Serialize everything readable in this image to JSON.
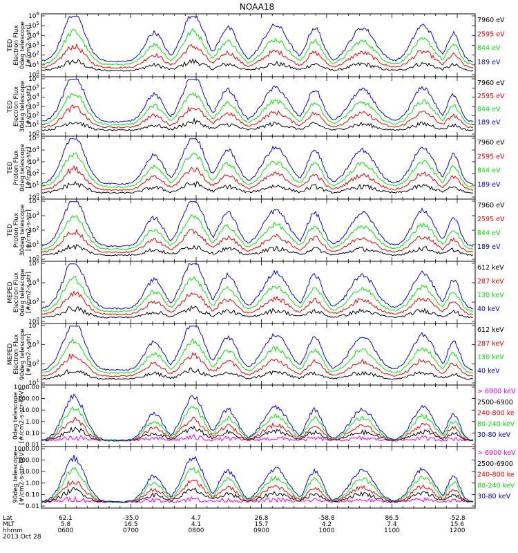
{
  "title": "NOAA18",
  "colors": {
    "blue": "#0000ff",
    "red": "#ff0000",
    "green": "#00ee00",
    "black": "#000000",
    "magenta": "#ff00ff"
  },
  "chart_data": [
    {
      "type": "line",
      "ylabel": [
        "TED",
        "Electron Flux",
        "0deg telescope",
        "[#/cm2-s-str]"
      ],
      "log_scale": true,
      "yticks": [
        "10^0",
        "10^1",
        "10^2",
        "10^3",
        "10^4",
        "10^5",
        "10^6"
      ],
      "series": [
        {
          "name": "7960 eV",
          "color": "black"
        },
        {
          "name": "2595 eV",
          "color": "red"
        },
        {
          "name": "844 eV",
          "color": "green"
        },
        {
          "name": "189 eV",
          "color": "blue"
        }
      ]
    },
    {
      "type": "line",
      "ylabel": [
        "TED",
        "Electron Flux",
        "30deg telescope",
        "[#/cm2-s-str]"
      ],
      "log_scale": true,
      "yticks": [
        "10^0",
        "10^1",
        "10^2",
        "10^3",
        "10^4",
        "10^5",
        "10^6"
      ],
      "series": [
        {
          "name": "7960 eV",
          "color": "black"
        },
        {
          "name": "2595 eV",
          "color": "red"
        },
        {
          "name": "844 eV",
          "color": "green"
        },
        {
          "name": "189 eV",
          "color": "blue"
        }
      ]
    },
    {
      "type": "line",
      "ylabel": [
        "TED",
        "Proton Flux",
        "0deg telescope",
        "[#/cm2-s-str]"
      ],
      "log_scale": true,
      "yticks": [
        "10^0",
        "10^1",
        "10^2",
        "10^3",
        "10^4",
        "10^5"
      ],
      "series": [
        {
          "name": "7960 eV",
          "color": "black"
        },
        {
          "name": "2595 eV",
          "color": "red"
        },
        {
          "name": "844 eV",
          "color": "green"
        },
        {
          "name": "189 eV",
          "color": "blue"
        }
      ]
    },
    {
      "type": "line",
      "ylabel": [
        "TED",
        "Proton Flux",
        "30deg telescope",
        "[#/cm2-s-str]"
      ],
      "log_scale": true,
      "yticks": [
        "10^0",
        "10^1",
        "10^2",
        "10^3",
        "10^4"
      ],
      "series": [
        {
          "name": "7960 eV",
          "color": "black"
        },
        {
          "name": "2595 eV",
          "color": "red"
        },
        {
          "name": "844 eV",
          "color": "green"
        },
        {
          "name": "189 eV",
          "color": "blue"
        }
      ]
    },
    {
      "type": "line",
      "ylabel": [
        "MEPED",
        "Electron Flux",
        "0deg telescope",
        "[#/cm2-s-str]"
      ],
      "log_scale": true,
      "yticks": [
        "10^0",
        "10^2",
        "10^4",
        "10^6"
      ],
      "series": [
        {
          "name": "612 keV",
          "color": "black"
        },
        {
          "name": "287 keV",
          "color": "red"
        },
        {
          "name": "130 keV",
          "color": "green"
        },
        {
          "name": "40 keV",
          "color": "blue"
        }
      ]
    },
    {
      "type": "line",
      "ylabel": [
        "MEPED",
        "Electron Flux",
        "90deg telescope",
        "[#/cm2-s-str]"
      ],
      "log_scale": true,
      "yticks": [
        "10^1",
        "10^2",
        "10^3",
        "10^4"
      ],
      "series": [
        {
          "name": "612 keV",
          "color": "black"
        },
        {
          "name": "287 keV",
          "color": "red"
        },
        {
          "name": "130 keV",
          "color": "green"
        },
        {
          "name": "40 keV",
          "color": "blue"
        }
      ]
    },
    {
      "type": "line",
      "ylabel": [
        "0deg telescope",
        "[#/cm2-s-str-keV]"
      ],
      "log_scale": true,
      "yticks": [
        "0.01",
        "0.10",
        "1.00",
        "10.00",
        "100.00",
        "1000.00"
      ],
      "series": [
        {
          "name": "> 6900 keV",
          "color": "magenta"
        },
        {
          "name": "2500-6900",
          "color": "black"
        },
        {
          "name": "240-800 ke",
          "color": "red"
        },
        {
          "name": "80-240 keV",
          "color": "green"
        },
        {
          "name": "30-80 keV",
          "color": "blue"
        }
      ]
    },
    {
      "type": "line",
      "ylabel": [
        "90deg telescope",
        "[#/cm2-s-str-keV]"
      ],
      "log_scale": true,
      "yticks": [
        "0.01",
        "0.10",
        "1.00",
        "10.00",
        "100.00",
        "1000.00"
      ],
      "series": [
        {
          "name": "> 6900 keV",
          "color": "magenta"
        },
        {
          "name": "2500-6900",
          "color": "black"
        },
        {
          "name": "240-800 ke",
          "color": "red"
        },
        {
          "name": "80-240 keV",
          "color": "green"
        },
        {
          "name": "30-80 keV",
          "color": "blue"
        }
      ]
    }
  ],
  "xaxis": {
    "row_labels": [
      "Lat",
      "MLT",
      "hhmm"
    ],
    "date": "2013 Oct 28",
    "ticks": [
      {
        "lat": "62.1",
        "mlt": "5.8",
        "hhmm": "0600"
      },
      {
        "lat": "-35.0",
        "mlt": "16.5",
        "hhmm": "0700"
      },
      {
        "lat": "4.7",
        "mlt": "4.1",
        "hhmm": "0800"
      },
      {
        "lat": "26.8",
        "mlt": "15.7",
        "hhmm": "0900"
      },
      {
        "lat": "-58.8",
        "mlt": "4.2",
        "hhmm": "1000"
      },
      {
        "lat": "86.5",
        "mlt": "7.4",
        "hhmm": "1100"
      },
      {
        "lat": "-52.8",
        "mlt": "15.6",
        "hhmm": "1200"
      }
    ]
  }
}
